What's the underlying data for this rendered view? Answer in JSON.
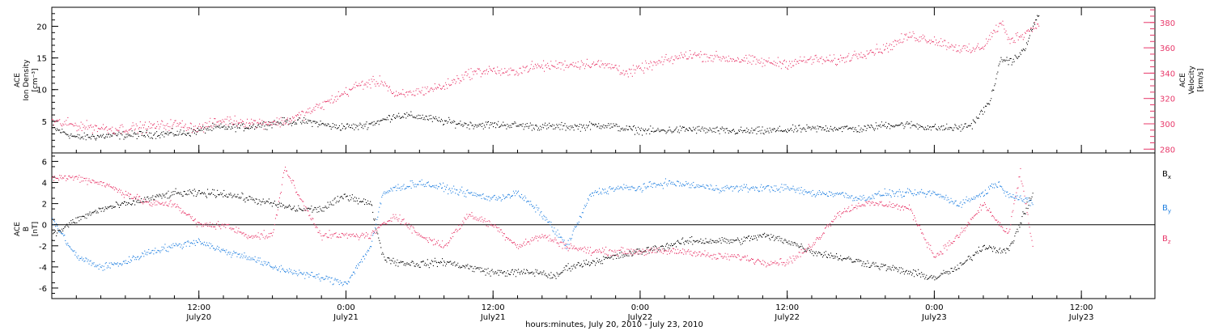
{
  "figure": {
    "xlabel": "hours:minutes, July 20, 2010 - July 23, 2010",
    "x_ticks": [
      {
        "hours": 12,
        "time": "12:00",
        "date": "July20"
      },
      {
        "hours": 24,
        "time": "0:00",
        "date": "July21"
      },
      {
        "hours": 36,
        "time": "12:00",
        "date": "July21"
      },
      {
        "hours": 48,
        "time": "0:00",
        "date": "July22"
      },
      {
        "hours": 60,
        "time": "12:00",
        "date": "July22"
      },
      {
        "hours": 72,
        "time": "0:00",
        "date": "July23"
      },
      {
        "hours": 84,
        "time": "12:00",
        "date": "July23"
      }
    ],
    "xlim_hours": [
      0,
      90
    ],
    "colors": {
      "black": "#000000",
      "blue": "#1f7fe0",
      "pink": "#e8386a"
    }
  },
  "chart_data": [
    {
      "type": "scatter",
      "panel": "top",
      "ylabel_left": [
        "ACE",
        "Ion Density",
        "[cm⁻³]"
      ],
      "ylabel_right": [
        "ACE",
        "Velocity",
        "[km/s]"
      ],
      "left_ticks": [
        5,
        10,
        15,
        20
      ],
      "left_ylim": [
        0,
        23
      ],
      "right_ticks": [
        280,
        300,
        320,
        340,
        360,
        380
      ],
      "right_ylim": [
        277,
        392
      ],
      "series": [
        {
          "axis": "left",
          "color": "#000000",
          "points": [
            [
              0,
              4
            ],
            [
              2,
              2.5
            ],
            [
              5,
              2.8
            ],
            [
              8,
              3
            ],
            [
              11,
              3.2
            ],
            [
              13,
              4
            ],
            [
              16,
              4.2
            ],
            [
              19,
              5
            ],
            [
              21,
              5
            ],
            [
              23,
              4.2
            ],
            [
              25,
              4.2
            ],
            [
              27,
              5.2
            ],
            [
              28,
              6
            ],
            [
              30,
              5.8
            ],
            [
              32,
              5
            ],
            [
              34,
              4.5
            ],
            [
              37,
              4.5
            ],
            [
              40,
              4.2
            ],
            [
              43,
              4.2
            ],
            [
              45,
              4.5
            ],
            [
              47,
              3.8
            ],
            [
              49,
              3.5
            ],
            [
              52,
              3.8
            ],
            [
              55,
              3.5
            ],
            [
              58,
              3.5
            ],
            [
              61,
              3.8
            ],
            [
              64,
              4
            ],
            [
              66,
              3.8
            ],
            [
              68,
              4.5
            ],
            [
              70,
              4.5
            ],
            [
              72,
              4
            ],
            [
              74,
              4
            ],
            [
              75,
              4.5
            ],
            [
              76.5,
              8
            ],
            [
              77,
              12
            ],
            [
              77.5,
              15
            ],
            [
              78,
              14.5
            ],
            [
              78.7,
              15
            ],
            [
              79.5,
              17
            ],
            [
              80,
              20
            ],
            [
              80.5,
              22
            ]
          ]
        },
        {
          "axis": "right",
          "color": "#e8386a",
          "points": [
            [
              0,
              302
            ],
            [
              2,
              299
            ],
            [
              5,
              296
            ],
            [
              8,
              298
            ],
            [
              10,
              300
            ],
            [
              12,
              297
            ],
            [
              14,
              303
            ],
            [
              17,
              301
            ],
            [
              19,
              302
            ],
            [
              21,
              310
            ],
            [
              23,
              320
            ],
            [
              25,
              331
            ],
            [
              27,
              334
            ],
            [
              28,
              322
            ],
            [
              30,
              326
            ],
            [
              32,
              330
            ],
            [
              34,
              340
            ],
            [
              36,
              343
            ],
            [
              37,
              340
            ],
            [
              39,
              345
            ],
            [
              42,
              347
            ],
            [
              44,
              348
            ],
            [
              46,
              345
            ],
            [
              47,
              340
            ],
            [
              48,
              344
            ],
            [
              50,
              350
            ],
            [
              52,
              355
            ],
            [
              55,
              352
            ],
            [
              58,
              349
            ],
            [
              60,
              348
            ],
            [
              62,
              351
            ],
            [
              64,
              350
            ],
            [
              66,
              356
            ],
            [
              68,
              360
            ],
            [
              70,
              370
            ],
            [
              72,
              366
            ],
            [
              74,
              360
            ],
            [
              75,
              358
            ],
            [
              76,
              362
            ],
            [
              77,
              375
            ],
            [
              77.5,
              380
            ],
            [
              78,
              366
            ],
            [
              79,
              370
            ],
            [
              80,
              376
            ],
            [
              80.5,
              380
            ]
          ]
        }
      ]
    },
    {
      "type": "scatter",
      "panel": "bottom",
      "ylabel_left": [
        "ACE",
        "B",
        "[nT]"
      ],
      "left_ticks": [
        -6,
        -4,
        -2,
        0,
        2,
        4,
        6
      ],
      "left_ylim": [
        -7,
        6.8
      ],
      "legend": [
        {
          "label": "B",
          "sub": "x",
          "color": "#000000"
        },
        {
          "label": "B",
          "sub": "y",
          "color": "#1f7fe0"
        },
        {
          "label": "B",
          "sub": "z",
          "color": "#e8386a"
        }
      ],
      "series": [
        {
          "name": "Bx",
          "color": "#000000",
          "points": [
            [
              0,
              -1
            ],
            [
              2,
              0.5
            ],
            [
              4,
              1.5
            ],
            [
              6,
              2
            ],
            [
              8,
              2.5
            ],
            [
              10,
              3
            ],
            [
              12,
              3
            ],
            [
              14,
              3
            ],
            [
              16,
              2.5
            ],
            [
              18,
              2
            ],
            [
              20,
              1.5
            ],
            [
              22,
              1.5
            ],
            [
              24,
              2.8
            ],
            [
              26,
              2
            ],
            [
              27,
              -3
            ],
            [
              28,
              -3.5
            ],
            [
              30,
              -3.7
            ],
            [
              32,
              -3.5
            ],
            [
              34,
              -4
            ],
            [
              36,
              -4.5
            ],
            [
              38,
              -4.5
            ],
            [
              40,
              -4.5
            ],
            [
              41,
              -5
            ],
            [
              42,
              -4
            ],
            [
              44,
              -3.5
            ],
            [
              46,
              -3
            ],
            [
              48,
              -2.5
            ],
            [
              50,
              -2
            ],
            [
              52,
              -1.5
            ],
            [
              54,
              -1.5
            ],
            [
              56,
              -1.5
            ],
            [
              58,
              -1
            ],
            [
              60,
              -1.5
            ],
            [
              62,
              -2.5
            ],
            [
              64,
              -3
            ],
            [
              66,
              -3.5
            ],
            [
              68,
              -4
            ],
            [
              70,
              -4.5
            ],
            [
              72,
              -5
            ],
            [
              74,
              -4
            ],
            [
              76,
              -2
            ],
            [
              78,
              -2.5
            ],
            [
              80,
              3
            ]
          ]
        },
        {
          "name": "By",
          "color": "#1f7fe0",
          "points": [
            [
              0,
              0.5
            ],
            [
              2,
              -3
            ],
            [
              4,
              -4
            ],
            [
              6,
              -3.5
            ],
            [
              8,
              -2.5
            ],
            [
              10,
              -2
            ],
            [
              12,
              -1.5
            ],
            [
              14,
              -2.5
            ],
            [
              16,
              -3
            ],
            [
              18,
              -4
            ],
            [
              20,
              -4.5
            ],
            [
              22,
              -5
            ],
            [
              24,
              -5.5
            ],
            [
              26,
              -2
            ],
            [
              27,
              3
            ],
            [
              28,
              3.5
            ],
            [
              30,
              4
            ],
            [
              32,
              3.5
            ],
            [
              34,
              3
            ],
            [
              36,
              2.5
            ],
            [
              38,
              3
            ],
            [
              40,
              1
            ],
            [
              42,
              -2
            ],
            [
              44,
              3
            ],
            [
              46,
              3.5
            ],
            [
              48,
              3.5
            ],
            [
              50,
              4
            ],
            [
              52,
              3.8
            ],
            [
              54,
              3.5
            ],
            [
              56,
              3.5
            ],
            [
              58,
              3.5
            ],
            [
              60,
              3.5
            ],
            [
              62,
              3
            ],
            [
              64,
              3
            ],
            [
              66,
              2.5
            ],
            [
              68,
              3
            ],
            [
              70,
              3
            ],
            [
              72,
              3
            ],
            [
              74,
              2
            ],
            [
              76,
              3
            ],
            [
              77,
              4
            ],
            [
              78,
              3
            ],
            [
              80,
              2
            ]
          ]
        },
        {
          "name": "Bz",
          "color": "#e8386a",
          "points": [
            [
              0,
              4.5
            ],
            [
              2,
              4.5
            ],
            [
              4,
              4
            ],
            [
              6,
              3
            ],
            [
              8,
              2
            ],
            [
              10,
              2
            ],
            [
              12,
              0
            ],
            [
              14,
              0
            ],
            [
              16,
              -1
            ],
            [
              18,
              -1
            ],
            [
              19,
              5.5
            ],
            [
              20,
              3
            ],
            [
              22,
              -1
            ],
            [
              24,
              -1
            ],
            [
              26,
              -1
            ],
            [
              28,
              1
            ],
            [
              30,
              -1
            ],
            [
              32,
              -2
            ],
            [
              34,
              1
            ],
            [
              36,
              0
            ],
            [
              38,
              -2
            ],
            [
              40,
              -1
            ],
            [
              42,
              -2
            ],
            [
              44,
              -2.5
            ],
            [
              46,
              -2.5
            ],
            [
              48,
              -2.5
            ],
            [
              50,
              -2.5
            ],
            [
              52,
              -2.5
            ],
            [
              54,
              -3
            ],
            [
              56,
              -3
            ],
            [
              58,
              -3.5
            ],
            [
              60,
              -3.5
            ],
            [
              62,
              -2
            ],
            [
              64,
              1
            ],
            [
              66,
              2
            ],
            [
              68,
              2
            ],
            [
              70,
              1.5
            ],
            [
              72,
              -3
            ],
            [
              74,
              -1
            ],
            [
              76,
              2
            ],
            [
              78,
              -1
            ],
            [
              79,
              5
            ],
            [
              80,
              -2
            ]
          ]
        }
      ]
    }
  ]
}
